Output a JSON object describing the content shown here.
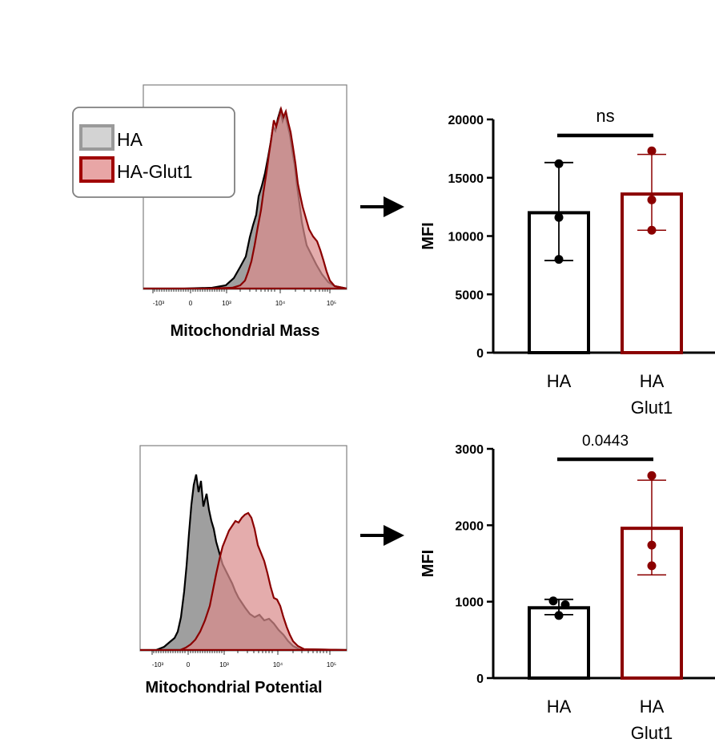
{
  "colors": {
    "ha_fill": "#9a9a9a",
    "ha_fill_light": "#d3d3d3",
    "ha_line": "#000000",
    "glut_fill": "#d98c8c",
    "glut_fill_light": "#e8a6a6",
    "glut_line": "#8b0000",
    "overlap_fill": "#8c4a4a"
  },
  "legend": {
    "ha": "HA",
    "glut": "HA-Glut1"
  },
  "histograms": {
    "mass": {
      "xlabel": "Mitochondrial Mass",
      "ticks": [
        "-10³",
        "0",
        "10³",
        "10⁴",
        "10⁵"
      ]
    },
    "potential": {
      "xlabel": "Mitochondrial Potential",
      "ticks": [
        "-10³",
        "0",
        "10³",
        "10⁴",
        "10⁵"
      ]
    }
  },
  "chart_data": [
    {
      "type": "bar",
      "ylabel": "MFI",
      "ylim": [
        0,
        20000
      ],
      "yticks": [
        0,
        5000,
        10000,
        15000,
        20000
      ],
      "categories": [
        "HA",
        "HA Glut1"
      ],
      "category_lines": [
        [
          "HA"
        ],
        [
          "HA",
          "Glut1"
        ]
      ],
      "values": [
        12000,
        13600
      ],
      "error_low": [
        7900,
        10500
      ],
      "error_high": [
        16300,
        17000
      ],
      "points": [
        [
          16200,
          11600,
          8000
        ],
        [
          17300,
          13100,
          10500
        ]
      ],
      "significance": "ns"
    },
    {
      "type": "bar",
      "ylabel": "MFI",
      "ylim": [
        0,
        3000
      ],
      "yticks": [
        0,
        1000,
        2000,
        3000
      ],
      "categories": [
        "HA",
        "HA Glut1"
      ],
      "category_lines": [
        [
          "HA"
        ],
        [
          "HA",
          "Glut1"
        ]
      ],
      "values": [
        920,
        1960
      ],
      "error_low": [
        830,
        1350
      ],
      "error_high": [
        1030,
        2590
      ],
      "points": [
        [
          1010,
          960,
          820
        ],
        [
          2650,
          1740,
          1470
        ]
      ],
      "significance": "0.0443"
    }
  ]
}
